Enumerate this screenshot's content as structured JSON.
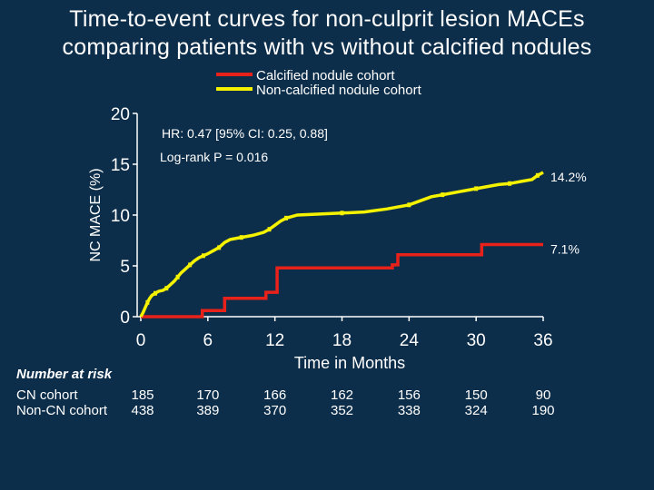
{
  "title_line1": "Time-to-event curves for non-culprit lesion MACEs",
  "title_line2": "comparing patients with vs without calcified nodules",
  "chart_data": {
    "type": "line",
    "xlabel": "Time in Months",
    "ylabel": "NC MACE (%)",
    "xlim": [
      0,
      36
    ],
    "ylim": [
      0,
      20
    ],
    "xticks": [
      "0",
      "6",
      "12",
      "18",
      "24",
      "30",
      "36"
    ],
    "yticks": [
      "0",
      "5",
      "10",
      "15",
      "20"
    ],
    "colors": {
      "calcified": "#e8211a",
      "noncalcified": "#f5f200",
      "axis": "#ffffff"
    },
    "series": [
      {
        "name": "Calcified nodule cohort",
        "color": "#e8211a",
        "end_label": "7.1%",
        "x": [
          0,
          0.5,
          5.5,
          5.5,
          7.5,
          7.5,
          11.2,
          11.2,
          12.2,
          12.2,
          22.5,
          22.5,
          23,
          23,
          30.5,
          30.5,
          36
        ],
        "y": [
          0,
          0,
          0,
          0.6,
          0.6,
          1.8,
          1.8,
          2.4,
          2.4,
          4.8,
          4.8,
          5.1,
          5.1,
          6.1,
          6.1,
          7.1,
          7.1
        ]
      },
      {
        "name": "Non-calcified nodule cohort",
        "color": "#f5f200",
        "end_label": "14.2%",
        "x": [
          0,
          0.2,
          0.4,
          0.6,
          0.8,
          1.0,
          1.3,
          1.6,
          2.0,
          2.3,
          2.6,
          3.0,
          3.3,
          3.6,
          4.0,
          4.4,
          4.8,
          5.2,
          5.6,
          6.0,
          6.5,
          7.0,
          7.5,
          8.0,
          9.0,
          10.0,
          11.0,
          11.5,
          12.0,
          12.5,
          13.0,
          14.0,
          16.0,
          18.0,
          20.0,
          22.0,
          24.0,
          25.0,
          26.0,
          27.0,
          28.0,
          29.0,
          30.0,
          31.0,
          32.0,
          33.0,
          34.0,
          35.0,
          35.5,
          36.0
        ],
        "y": [
          0,
          0.4,
          0.9,
          1.4,
          1.8,
          2.1,
          2.3,
          2.5,
          2.6,
          2.8,
          3.1,
          3.5,
          3.9,
          4.3,
          4.7,
          5.1,
          5.5,
          5.8,
          6.0,
          6.2,
          6.5,
          6.8,
          7.3,
          7.6,
          7.8,
          8.0,
          8.3,
          8.6,
          9.0,
          9.4,
          9.7,
          10.0,
          10.1,
          10.2,
          10.3,
          10.6,
          11.0,
          11.4,
          11.8,
          12.0,
          12.2,
          12.4,
          12.6,
          12.8,
          13.0,
          13.1,
          13.3,
          13.5,
          13.9,
          14.2
        ]
      }
    ],
    "annotations": [
      "HR: 0.47 [95% CI: 0.25, 0.88]",
      "Log-rank P = 0.016"
    ],
    "legend_position": "top-right"
  },
  "risk_table": {
    "title": "Number at risk",
    "rows": [
      {
        "label": "CN cohort",
        "values": [
          "185",
          "170",
          "166",
          "162",
          "156",
          "150",
          "90"
        ]
      },
      {
        "label": "Non-CN cohort",
        "values": [
          "438",
          "389",
          "370",
          "352",
          "338",
          "324",
          "190"
        ]
      }
    ]
  }
}
